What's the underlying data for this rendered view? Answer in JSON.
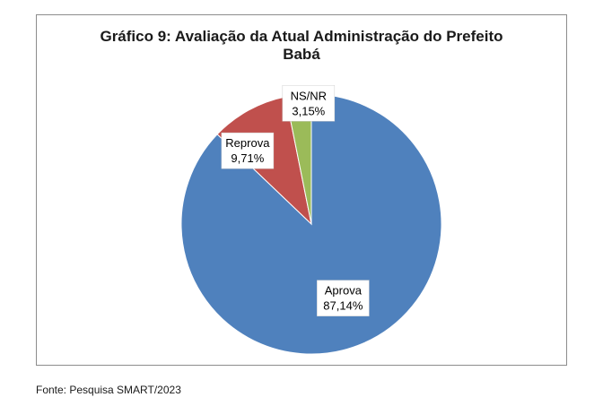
{
  "chart_data": {
    "type": "pie",
    "title_lines": [
      "Gráfico 9: Avaliação da Atual Administração do Prefeito",
      "Babá"
    ],
    "slices": [
      {
        "label": "Aprova",
        "value": 87.14,
        "display": "87,14%",
        "color": "#4f81bd"
      },
      {
        "label": "Reprova",
        "value": 9.71,
        "display": "9,71%",
        "color": "#c0504d"
      },
      {
        "label": "NS/NR",
        "value": 3.15,
        "display": "3,15%",
        "color": "#9bbb59"
      }
    ],
    "start": "12 o'clock",
    "direction": "clockwise"
  },
  "footer": {
    "source": "Fonte: Pesquisa SMART/2023"
  }
}
